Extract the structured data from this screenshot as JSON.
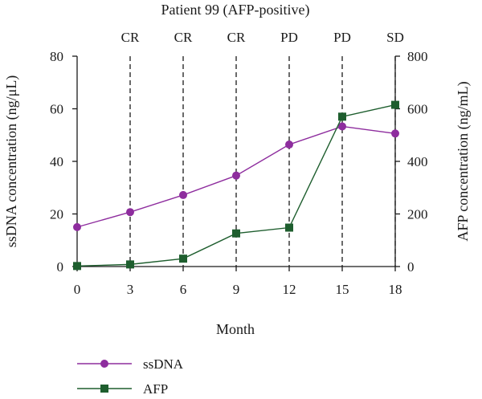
{
  "chart_data": {
    "type": "line",
    "title": "Patient 99 (AFP-positive)",
    "xlabel": "Month",
    "ylabel_left": "ssDNA concentration (ng/μL)",
    "ylabel_right": "AFP concentration (ng/mL)",
    "x": [
      0,
      3,
      6,
      9,
      12,
      15,
      18
    ],
    "xlim": [
      0,
      18
    ],
    "ylim_left": [
      0,
      80
    ],
    "ylim_right": [
      0,
      800
    ],
    "x_ticks": [
      0,
      3,
      6,
      9,
      12,
      15,
      18
    ],
    "y_ticks_left": [
      0,
      20,
      40,
      60,
      80
    ],
    "y_ticks_right": [
      0,
      200,
      400,
      600,
      800
    ],
    "status_markers": [
      {
        "x": 3,
        "label": "CR"
      },
      {
        "x": 6,
        "label": "CR"
      },
      {
        "x": 9,
        "label": "CR"
      },
      {
        "x": 12,
        "label": "PD"
      },
      {
        "x": 15,
        "label": "PD"
      },
      {
        "x": 18,
        "label": "SD"
      }
    ],
    "series": [
      {
        "name": "ssDNA",
        "axis": "left",
        "marker": "circle",
        "color": "#8e2d9e",
        "values": [
          15,
          20.7,
          27.2,
          34.6,
          46.4,
          53.3,
          50.6
        ]
      },
      {
        "name": "AFP",
        "axis": "right",
        "marker": "square",
        "color": "#1e5e2e",
        "values": [
          2,
          8,
          30,
          126,
          148,
          570,
          615
        ]
      }
    ],
    "legend_placement": "bottom-left",
    "grid": false
  }
}
